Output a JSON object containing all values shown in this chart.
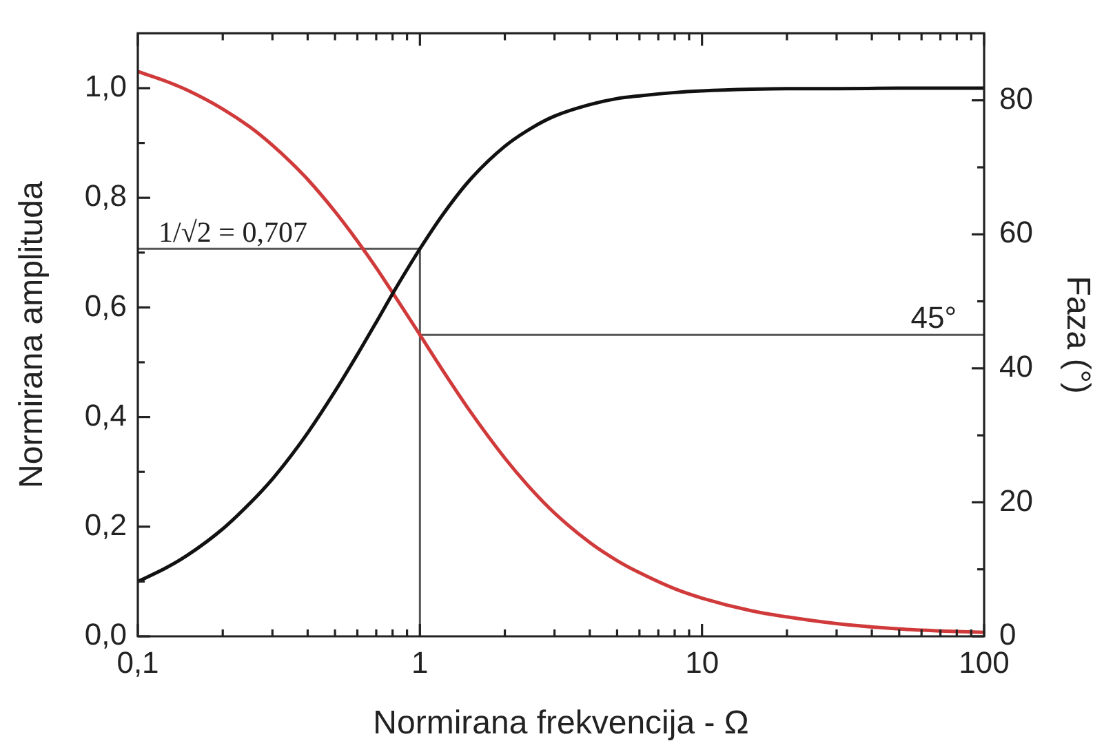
{
  "chart_data": {
    "type": "line",
    "xlabel": "Normirana frekvencija - Ω",
    "ylabel": "Normirana amplituda",
    "y2label": "Faza (°)",
    "log": "x",
    "xlim": [
      0.1,
      100
    ],
    "xticks": [
      {
        "value": 0.1,
        "label": "0,1"
      },
      {
        "value": 0.2,
        "label": null
      },
      {
        "value": 0.3,
        "label": null
      },
      {
        "value": 0.4,
        "label": null
      },
      {
        "value": 0.5,
        "label": null
      },
      {
        "value": 0.6,
        "label": null
      },
      {
        "value": 0.7,
        "label": null
      },
      {
        "value": 0.8,
        "label": null
      },
      {
        "value": 0.9,
        "label": null
      },
      1,
      {
        "value": 2,
        "label": null
      },
      {
        "value": 3,
        "label": null
      },
      {
        "value": 4,
        "label": null
      },
      {
        "value": 5,
        "label": null
      },
      {
        "value": 6,
        "label": null
      },
      {
        "value": 7,
        "label": null
      },
      {
        "value": 8,
        "label": null
      },
      {
        "value": 9,
        "label": null
      },
      10,
      {
        "value": 20,
        "label": null
      },
      {
        "value": 30,
        "label": null
      },
      {
        "value": 40,
        "label": null
      },
      {
        "value": 50,
        "label": null
      },
      {
        "value": 60,
        "label": null
      },
      {
        "value": 70,
        "label": null
      },
      {
        "value": 80,
        "label": null
      },
      {
        "value": 90,
        "label": null
      },
      100
    ],
    "ylim": [
      0,
      1.1
    ],
    "yticks": [
      {
        "value": 0,
        "label": "0,0"
      },
      {
        "value": 0.1,
        "label": null
      },
      {
        "value": 0.2,
        "label": "0,2"
      },
      {
        "value": 0.3,
        "label": null
      },
      {
        "value": 0.4,
        "label": "0,4"
      },
      {
        "value": 0.5,
        "label": null
      },
      {
        "value": 0.6,
        "label": "0,6"
      },
      {
        "value": 0.7,
        "label": null
      },
      {
        "value": 0.8,
        "label": "0,8"
      },
      {
        "value": 0.9,
        "label": null
      },
      {
        "value": 1,
        "label": "1,0"
      }
    ],
    "y2lim": [
      0,
      90
    ],
    "y2ticks": [
      0,
      {
        "value": 10,
        "label": null
      },
      20,
      {
        "value": 30,
        "label": null
      },
      40,
      {
        "value": 50,
        "label": null
      },
      60,
      {
        "value": 70,
        "label": null
      },
      80
    ],
    "x": [
      0.1,
      0.125,
      0.15,
      0.2,
      0.25,
      0.3,
      0.35,
      0.4,
      0.5,
      0.6,
      0.7,
      0.8,
      0.9,
      1,
      1.2,
      1.5,
      2,
      2.5,
      3,
      4,
      5,
      6,
      8,
      10,
      15,
      20,
      30,
      50,
      70,
      100
    ],
    "series": [
      {
        "color": "#111111",
        "values": [
          0.1,
          0.124,
          0.148,
          0.196,
          0.243,
          0.287,
          0.33,
          0.371,
          0.447,
          0.514,
          0.573,
          0.625,
          0.669,
          0.707,
          0.768,
          0.832,
          0.894,
          0.928,
          0.949,
          0.97,
          0.981,
          0.986,
          0.992,
          0.995,
          0.998,
          0.999,
          0.999,
          1.0,
          1.0,
          1.0
        ]
      },
      {
        "color": "#d03a3a",
        "axis": "y2",
        "values": [
          84.3,
          82.9,
          81.5,
          78.7,
          76.0,
          73.3,
          70.7,
          68.2,
          63.4,
          59.0,
          55.0,
          51.3,
          48.0,
          45.0,
          39.8,
          33.7,
          26.6,
          21.8,
          18.4,
          14.0,
          11.3,
          9.5,
          7.1,
          5.7,
          3.8,
          2.9,
          1.9,
          1.1,
          0.8,
          0.6
        ]
      },
      {
        "color": "#555555",
        "x": [
          0.1,
          1,
          1
        ],
        "values": [
          0.707,
          0.707,
          0
        ]
      },
      {
        "color": "#555555",
        "axis": "y2",
        "x": [
          1,
          100
        ],
        "values": [
          45,
          45
        ]
      }
    ],
    "annotations": [
      {
        "text": "1/√2 = 0,707",
        "x": 0.1,
        "y": 0.707
      },
      {
        "text": "45°",
        "x": 100,
        "y": 0.55
      }
    ]
  }
}
